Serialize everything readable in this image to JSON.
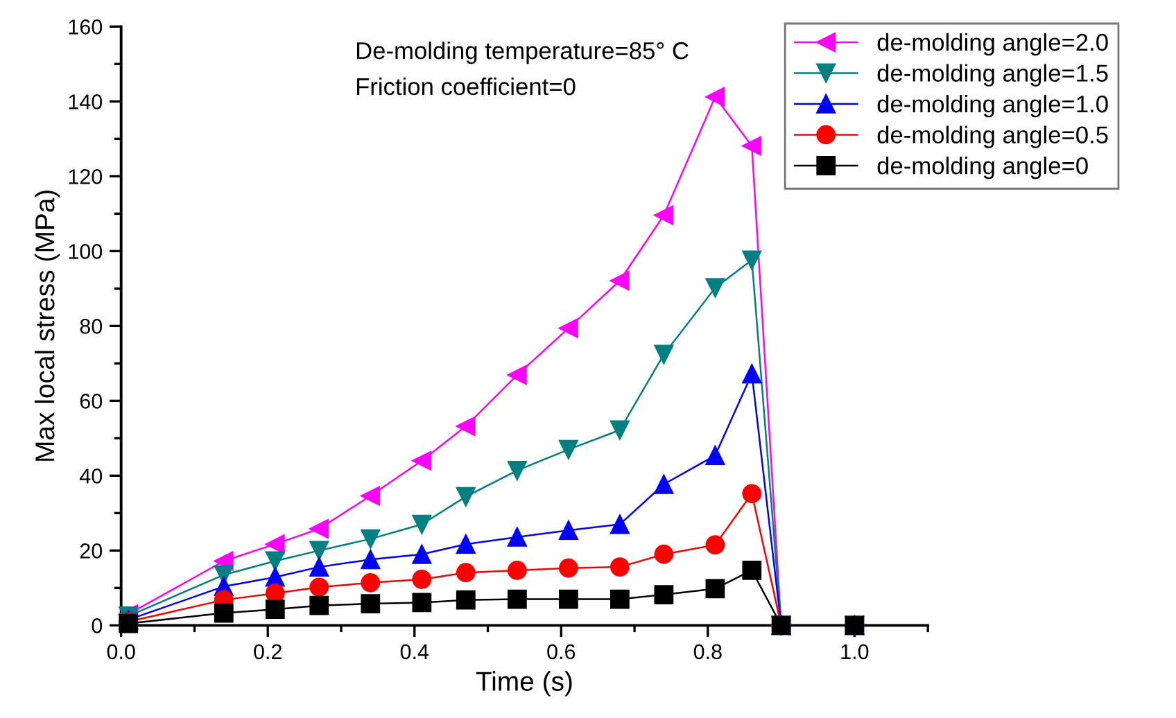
{
  "chart_data": {
    "type": "line",
    "xlabel": "Time (s)",
    "ylabel": "Max local stress (MPa)",
    "annotations": [
      "De-molding temperature=85° C",
      "Friction coefficient=0"
    ],
    "x": [
      0.01,
      0.14,
      0.21,
      0.27,
      0.34,
      0.41,
      0.47,
      0.54,
      0.61,
      0.68,
      0.74,
      0.81,
      0.86,
      0.9,
      1.0
    ],
    "series": [
      {
        "name": "de-molding angle=2.0",
        "color": "#ff00ff",
        "marker": "triangle-left",
        "values": [
          3,
          17.2,
          21.7,
          25.8,
          34.6,
          44,
          53.2,
          66.9,
          79.4,
          92.1,
          109.6,
          141.2,
          128.1,
          0,
          0
        ]
      },
      {
        "name": "de-molding angle=1.5",
        "color": "#008080",
        "marker": "triangle-down",
        "values": [
          2.5,
          13.5,
          17.2,
          20,
          23.1,
          27,
          34.4,
          41.4,
          47,
          52.2,
          72.4,
          90.2,
          97.6,
          0,
          0
        ]
      },
      {
        "name": "de-molding angle=1.0",
        "color": "#0000ff",
        "marker": "triangle",
        "values": [
          1.5,
          10.4,
          12.9,
          15.6,
          17.6,
          19,
          21.7,
          23.6,
          25.4,
          27,
          37.7,
          45.4,
          67.2,
          0,
          0
        ]
      },
      {
        "name": "de-molding angle=0.5",
        "color": "#ff0000",
        "marker": "circle",
        "values": [
          1,
          6.8,
          8.6,
          10.2,
          11.4,
          12.3,
          14.1,
          14.7,
          15.3,
          15.6,
          19,
          21.5,
          35.2,
          0,
          0
        ]
      },
      {
        "name": "de-molding angle=0",
        "color": "#000000",
        "marker": "square",
        "values": [
          0.5,
          3.3,
          4.3,
          5.3,
          5.8,
          6.1,
          6.8,
          7,
          7,
          7,
          8.2,
          9.8,
          14.7,
          0,
          0
        ]
      }
    ],
    "xlim": [
      0,
      1.1
    ],
    "xticks": [
      {
        "value": 0,
        "label": "0.0"
      },
      {
        "value": 0.1,
        "label": null
      },
      0.2,
      {
        "value": 0.3,
        "label": null
      },
      0.4,
      {
        "value": 0.5,
        "label": null
      },
      0.6,
      {
        "value": 0.7,
        "label": null
      },
      0.8,
      {
        "value": 0.9,
        "label": null
      },
      {
        "value": 1,
        "label": "1.0"
      },
      {
        "value": 1.1,
        "label": null
      }
    ],
    "ylim": [
      0,
      160
    ],
    "yticks": [
      0,
      {
        "value": 10,
        "label": null
      },
      20,
      {
        "value": 30,
        "label": null
      },
      40,
      {
        "value": 50,
        "label": null
      },
      60,
      {
        "value": 70,
        "label": null
      },
      80,
      {
        "value": 90,
        "label": null
      },
      100,
      {
        "value": 110,
        "label": null
      },
      120,
      {
        "value": 130,
        "label": null
      },
      140,
      {
        "value": 150,
        "label": null
      },
      160
    ],
    "grid": false,
    "legend": "top right",
    "line_style": "solid"
  }
}
